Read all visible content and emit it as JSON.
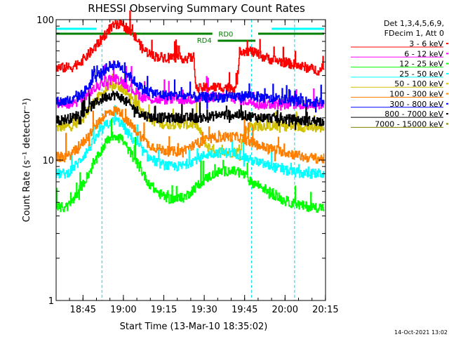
{
  "chart_data": {
    "type": "line",
    "title": "RHESSI Observing Summary Count Rates",
    "xlabel": "Start Time (13-Mar-10 18:35:02)",
    "ylabel": "Count Rate (s⁻¹ detector⁻¹)",
    "y_scale": "log",
    "ylim": [
      1,
      100
    ],
    "xlim_minutes": [
      0,
      100
    ],
    "x_ticks": [
      {
        "label": "18:45",
        "min": 9.97
      },
      {
        "label": "19:00",
        "min": 24.97
      },
      {
        "label": "19:15",
        "min": 39.97
      },
      {
        "label": "19:30",
        "min": 54.97
      },
      {
        "label": "19:45",
        "min": 69.97
      },
      {
        "label": "20:00",
        "min": 84.97
      },
      {
        "label": "20:15",
        "min": 99.97
      }
    ],
    "y_ticks": [
      {
        "label": "1",
        "value": 1
      },
      {
        "label": "10",
        "value": 10
      },
      {
        "label": "100",
        "value": 100
      }
    ],
    "legend": {
      "header": [
        "Det 1,3,4,5,6,9,",
        "FDecim 1, Att 0"
      ],
      "position": "right"
    },
    "timestamp": "14-Oct-2021 13:02",
    "annotations": [
      {
        "label": "RD0",
        "color": "#008000"
      },
      {
        "label": "RD4",
        "color": "#008000"
      }
    ],
    "night_markers_min": [
      -0.5,
      17.0,
      72.5,
      88.5
    ],
    "series": [
      {
        "name": "3 - 6 keV",
        "color": "#ff0000",
        "points": [
          [
            0,
            45
          ],
          [
            6,
            46
          ],
          [
            10,
            52
          ],
          [
            14,
            62
          ],
          [
            18,
            78
          ],
          [
            20,
            87
          ],
          [
            22,
            91
          ],
          [
            24,
            92
          ],
          [
            26,
            88
          ],
          [
            28,
            80
          ],
          [
            30,
            72
          ],
          [
            32,
            62
          ],
          [
            36,
            55
          ],
          [
            40,
            54
          ],
          [
            44,
            54
          ],
          [
            48,
            53
          ],
          [
            51,
            54
          ],
          [
            52,
            32
          ],
          [
            56,
            33
          ],
          [
            60,
            33
          ],
          [
            64,
            33
          ],
          [
            67,
            33
          ],
          [
            68,
            60
          ],
          [
            72,
            60
          ],
          [
            76,
            55
          ],
          [
            80,
            52
          ],
          [
            84,
            50
          ],
          [
            88,
            48
          ],
          [
            92,
            46
          ],
          [
            96,
            44
          ],
          [
            99,
            43
          ]
        ]
      },
      {
        "name": "6 - 12 keV",
        "color": "#ff00ff",
        "points": [
          [
            0,
            25
          ],
          [
            6,
            25
          ],
          [
            10,
            28
          ],
          [
            14,
            32
          ],
          [
            18,
            36
          ],
          [
            20,
            38
          ],
          [
            22,
            38
          ],
          [
            24,
            37
          ],
          [
            26,
            34
          ],
          [
            28,
            32
          ],
          [
            32,
            28
          ],
          [
            36,
            27
          ],
          [
            40,
            27
          ],
          [
            44,
            27
          ],
          [
            48,
            27
          ],
          [
            52,
            27
          ],
          [
            56,
            28
          ],
          [
            60,
            28
          ],
          [
            64,
            28
          ],
          [
            68,
            27
          ],
          [
            72,
            26
          ],
          [
            76,
            25
          ],
          [
            80,
            25
          ],
          [
            84,
            25
          ],
          [
            88,
            25
          ],
          [
            92,
            25
          ],
          [
            96,
            25
          ],
          [
            99,
            25
          ]
        ]
      },
      {
        "name": "12 - 25 keV",
        "color": "#00ff00",
        "points": [
          [
            0,
            4.6
          ],
          [
            4,
            4.6
          ],
          [
            8,
            5.8
          ],
          [
            12,
            8
          ],
          [
            16,
            11
          ],
          [
            18,
            13
          ],
          [
            20,
            14.5
          ],
          [
            22,
            15
          ],
          [
            24,
            14.5
          ],
          [
            26,
            12.5
          ],
          [
            30,
            9.5
          ],
          [
            34,
            7
          ],
          [
            38,
            5.8
          ],
          [
            42,
            5.3
          ],
          [
            46,
            5.3
          ],
          [
            48,
            5.5
          ],
          [
            52,
            6.5
          ],
          [
            56,
            7.5
          ],
          [
            60,
            8.2
          ],
          [
            64,
            8.4
          ],
          [
            68,
            8.2
          ],
          [
            70,
            7.8
          ],
          [
            72,
            7
          ],
          [
            76,
            6.5
          ],
          [
            80,
            5.8
          ],
          [
            84,
            5.2
          ],
          [
            88,
            4.9
          ],
          [
            92,
            4.7
          ],
          [
            96,
            4.6
          ],
          [
            99,
            4.6
          ]
        ]
      },
      {
        "name": "25 - 50 keV",
        "color": "#00ffff",
        "points": [
          [
            0,
            8
          ],
          [
            4,
            8
          ],
          [
            8,
            9.5
          ],
          [
            12,
            12
          ],
          [
            16,
            15.5
          ],
          [
            18,
            17.5
          ],
          [
            20,
            18.5
          ],
          [
            22,
            19
          ],
          [
            24,
            18.5
          ],
          [
            26,
            16
          ],
          [
            30,
            13
          ],
          [
            34,
            10.5
          ],
          [
            38,
            9.5
          ],
          [
            42,
            9
          ],
          [
            46,
            9
          ],
          [
            48,
            9.3
          ],
          [
            52,
            10.2
          ],
          [
            56,
            11
          ],
          [
            60,
            11.3
          ],
          [
            64,
            11.3
          ],
          [
            68,
            11
          ],
          [
            70,
            10.5
          ],
          [
            72,
            10
          ],
          [
            76,
            9.5
          ],
          [
            80,
            9
          ],
          [
            84,
            8.5
          ],
          [
            88,
            8.2
          ],
          [
            92,
            8
          ],
          [
            96,
            8
          ],
          [
            99,
            8
          ]
        ]
      },
      {
        "name": "50 - 100 keV",
        "color": "#d0c000",
        "points": [
          [
            0,
            17
          ],
          [
            6,
            17.5
          ],
          [
            10,
            20
          ],
          [
            14,
            26
          ],
          [
            18,
            31
          ],
          [
            20,
            33
          ],
          [
            22,
            34
          ],
          [
            24,
            33
          ],
          [
            26,
            30
          ],
          [
            28,
            27
          ],
          [
            32,
            22
          ],
          [
            36,
            19
          ],
          [
            40,
            18
          ],
          [
            44,
            18
          ],
          [
            48,
            18
          ],
          [
            52,
            18
          ],
          [
            56,
            12.5
          ],
          [
            60,
            11.5
          ],
          [
            64,
            11.3
          ],
          [
            68,
            11.5
          ],
          [
            70,
            16
          ],
          [
            72,
            17.5
          ],
          [
            76,
            17.5
          ],
          [
            80,
            17.5
          ],
          [
            84,
            17.5
          ],
          [
            88,
            17.3
          ],
          [
            92,
            17.2
          ],
          [
            96,
            17
          ],
          [
            99,
            17
          ]
        ]
      },
      {
        "name": "100 - 300 keV",
        "color": "#ff8000",
        "points": [
          [
            0,
            10.5
          ],
          [
            4,
            10.5
          ],
          [
            8,
            12
          ],
          [
            12,
            15
          ],
          [
            16,
            19
          ],
          [
            18,
            21
          ],
          [
            20,
            22
          ],
          [
            22,
            22.5
          ],
          [
            24,
            22
          ],
          [
            26,
            19
          ],
          [
            30,
            16
          ],
          [
            34,
            13
          ],
          [
            38,
            12
          ],
          [
            42,
            11.5
          ],
          [
            46,
            11.5
          ],
          [
            48,
            12
          ],
          [
            52,
            13
          ],
          [
            56,
            14
          ],
          [
            60,
            14.5
          ],
          [
            64,
            14.7
          ],
          [
            68,
            14.5
          ],
          [
            70,
            14
          ],
          [
            72,
            13.5
          ],
          [
            76,
            12.5
          ],
          [
            80,
            12
          ],
          [
            84,
            11.5
          ],
          [
            88,
            11
          ],
          [
            92,
            10.5
          ],
          [
            96,
            10.3
          ],
          [
            99,
            10.2
          ]
        ]
      },
      {
        "name": "300 - 800 keV",
        "color": "#0000ff",
        "points": [
          [
            0,
            26
          ],
          [
            6,
            26.5
          ],
          [
            10,
            30
          ],
          [
            14,
            38
          ],
          [
            18,
            44
          ],
          [
            20,
            47
          ],
          [
            22,
            48
          ],
          [
            24,
            46
          ],
          [
            26,
            42
          ],
          [
            28,
            38
          ],
          [
            32,
            32
          ],
          [
            36,
            30
          ],
          [
            40,
            29
          ],
          [
            44,
            29
          ],
          [
            48,
            28.5
          ],
          [
            52,
            28
          ],
          [
            56,
            28
          ],
          [
            60,
            28
          ],
          [
            64,
            28
          ],
          [
            68,
            28.5
          ],
          [
            72,
            29
          ],
          [
            76,
            28
          ],
          [
            80,
            27
          ],
          [
            84,
            27
          ],
          [
            88,
            26.5
          ],
          [
            92,
            26
          ],
          [
            96,
            26
          ],
          [
            99,
            26
          ]
        ]
      },
      {
        "name": "800 - 7000 keV",
        "color": "#000000",
        "points": [
          [
            0,
            19
          ],
          [
            6,
            20
          ],
          [
            10,
            22
          ],
          [
            14,
            25
          ],
          [
            18,
            28
          ],
          [
            20,
            29
          ],
          [
            22,
            29
          ],
          [
            24,
            28
          ],
          [
            26,
            26
          ],
          [
            28,
            24
          ],
          [
            32,
            21
          ],
          [
            36,
            20
          ],
          [
            40,
            20
          ],
          [
            44,
            20
          ],
          [
            48,
            20
          ],
          [
            52,
            20
          ],
          [
            56,
            20
          ],
          [
            60,
            21
          ],
          [
            64,
            21
          ],
          [
            68,
            21
          ],
          [
            72,
            20.5
          ],
          [
            76,
            20
          ],
          [
            80,
            20
          ],
          [
            84,
            19.5
          ],
          [
            88,
            19.5
          ],
          [
            92,
            19
          ],
          [
            96,
            19
          ],
          [
            99,
            19
          ]
        ]
      },
      {
        "name": "7000 - 15000 keV",
        "color": "#808000",
        "points": []
      }
    ]
  }
}
